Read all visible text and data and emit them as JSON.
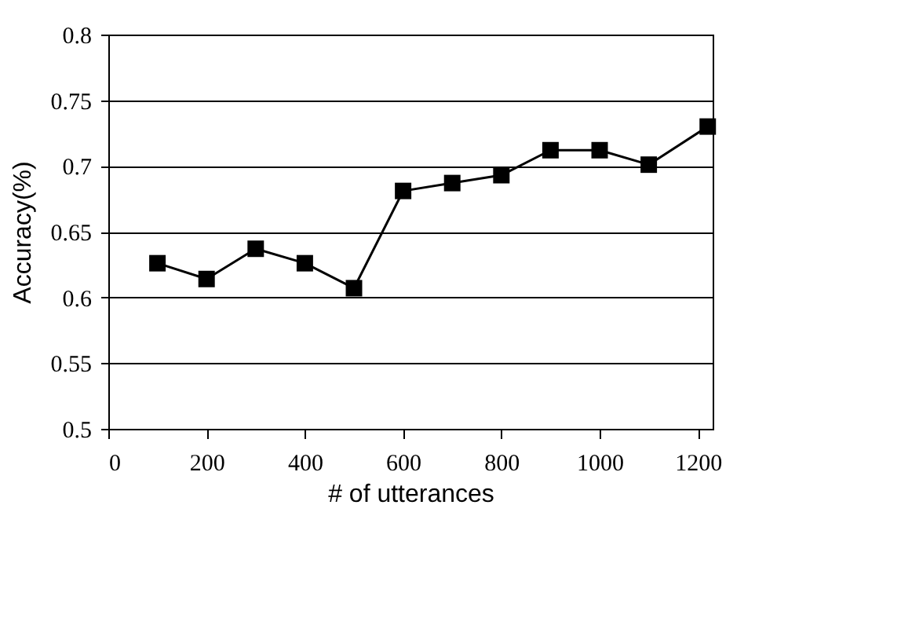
{
  "chart_data": {
    "type": "line",
    "xlabel": "# of utterances",
    "ylabel": "Accuracy(%)",
    "x": [
      100,
      200,
      300,
      400,
      500,
      600,
      700,
      800,
      900,
      1000,
      1100,
      1220
    ],
    "series": [
      {
        "color": "#000000",
        "values": [
          0.626,
          0.614,
          0.637,
          0.626,
          0.607,
          0.681,
          0.687,
          0.693,
          0.712,
          0.712,
          0.701,
          0.73
        ]
      }
    ],
    "xlim": [
      0,
      1230
    ],
    "xticks": [
      0,
      200,
      400,
      600,
      800,
      1000,
      1200
    ],
    "ylim": [
      0.5,
      0.8
    ],
    "yticks": [
      0.5,
      0.55,
      0.6,
      0.65,
      0.7,
      0.75,
      0.8
    ],
    "grid": "y",
    "marker": "square",
    "line_style": "solid"
  }
}
